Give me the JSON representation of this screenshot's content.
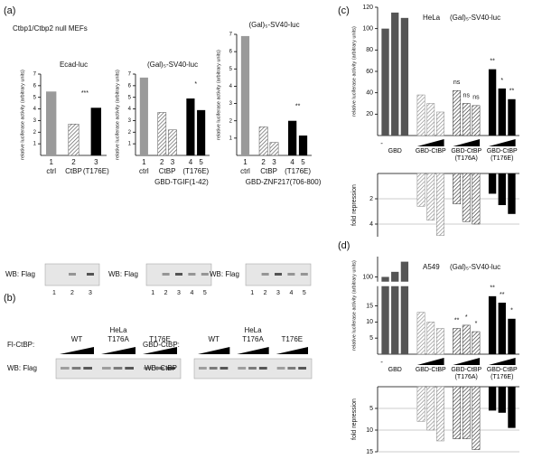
{
  "header": "Ctbp1/Ctbp2 null MEFs",
  "panel_labels": [
    "(a)",
    "(b)",
    "(c)",
    "(d)"
  ],
  "blots_a": [
    {
      "label": "WB: Flag",
      "lanes": [
        "1",
        "2",
        "3"
      ]
    },
    {
      "label": "WB: Flag",
      "lanes": [
        "1",
        "2",
        "3",
        "4",
        "5"
      ]
    },
    {
      "label": "WB: Flag",
      "lanes": [
        "1",
        "2",
        "3",
        "4",
        "5"
      ]
    }
  ],
  "panel_b": [
    {
      "cell": "HeLa",
      "construct": "Fl-CtBP:",
      "groups": [
        "WT",
        "T176A",
        "T176E"
      ],
      "wb": "WB: Flag"
    },
    {
      "cell": "HeLa",
      "construct": "GBD-CtBP:",
      "groups": [
        "WT",
        "T176A",
        "T176E"
      ],
      "wb": "WB: CtBP"
    }
  ],
  "chart_data": [
    {
      "type": "bar",
      "title": "Ecad-luc",
      "ylabel": "relative luciferase activity (arbitrary units)",
      "ylim": [
        0,
        7
      ],
      "yticks": [
        1,
        2,
        3,
        4,
        5,
        6,
        7
      ],
      "lane_labels": [
        "1",
        "2",
        "3"
      ],
      "series": [
        {
          "name": "ctrl",
          "color": "#9a9a9a",
          "values": [
            5.5
          ]
        },
        {
          "name": "CtBP",
          "color": "#555555",
          "pattern": "hatch",
          "values": [
            2.7
          ]
        },
        {
          "name": "(T176E)",
          "color": "#000000",
          "values": [
            4.1
          ]
        }
      ],
      "annotations": [
        "***"
      ]
    },
    {
      "type": "bar",
      "title": "(Gal)₅-SV40-luc",
      "ylabel": "relative luciferase activity (arbitrary units)",
      "ylim": [
        0,
        7
      ],
      "yticks": [
        1,
        2,
        3,
        4,
        5,
        6,
        7
      ],
      "lane_labels": [
        "1",
        "2",
        "3",
        "4",
        "5"
      ],
      "series": [
        {
          "name": "ctrl",
          "color": "#9a9a9a",
          "values": [
            6.7
          ]
        },
        {
          "name": "CtBP",
          "color": "#555555",
          "pattern": "hatch",
          "values": [
            3.7,
            2.2
          ]
        },
        {
          "name": "(T176E)",
          "color": "#000000",
          "values": [
            4.9,
            3.9
          ]
        }
      ],
      "xlabel": "GBD-TGIF(1-42)",
      "annotations": [
        "*"
      ]
    },
    {
      "type": "bar",
      "title": "(Gal)₅-SV40-luc",
      "ylabel": "relative luciferase activity (arbitrary units)",
      "ylim": [
        0,
        7
      ],
      "yticks": [
        1,
        2,
        3,
        4,
        5,
        6,
        7
      ],
      "lane_labels": [
        "1",
        "2",
        "3",
        "4",
        "5"
      ],
      "series": [
        {
          "name": "ctrl",
          "color": "#9a9a9a",
          "values": [
            6.9
          ]
        },
        {
          "name": "CtBP",
          "color": "#555555",
          "pattern": "hatch",
          "values": [
            1.65,
            0.75
          ]
        },
        {
          "name": "(T176E)",
          "color": "#000000",
          "values": [
            2.0,
            1.15
          ]
        }
      ],
      "xlabel": "GBD-ZNF217(706-800)",
      "annotations": [
        "**"
      ]
    },
    {
      "type": "bar",
      "cell_line": "HeLa",
      "title": "(Gal)₅-SV40-luc",
      "ylabel": "relative luciferase activity (arbitrary units)",
      "ylim": [
        0,
        120
      ],
      "yticks": [
        20,
        40,
        60,
        80,
        100,
        120
      ],
      "control_label": "-",
      "series": [
        {
          "name": "GBD",
          "color": "#555555",
          "values": [
            100,
            115,
            110
          ]
        },
        {
          "name": "GBD-CtBP",
          "color": "#888888",
          "pattern": "hatch",
          "values": [
            38,
            30,
            22
          ]
        },
        {
          "name": "GBD-CtBP (T176A)",
          "color": "#333333",
          "pattern": "hatch",
          "values": [
            42,
            30,
            28
          ]
        },
        {
          "name": "GBD-CtBP (T176E)",
          "color": "#000000",
          "values": [
            62,
            44,
            34
          ]
        }
      ],
      "annotations": [
        "ns",
        "ns",
        "ns",
        "**",
        "*",
        "**"
      ]
    },
    {
      "type": "bar",
      "ylabel": "fold repression",
      "ylim": [
        0,
        5
      ],
      "yticks": [
        2,
        4
      ],
      "y_inverted": true,
      "series": [
        {
          "color": "#888888",
          "pattern": "hatch",
          "values": [
            2.6,
            3.7,
            4.9
          ]
        },
        {
          "color": "#333333",
          "pattern": "hatch",
          "values": [
            2.4,
            3.8,
            4.0
          ]
        },
        {
          "color": "#000000",
          "values": [
            1.6,
            2.5,
            3.2
          ]
        }
      ]
    },
    {
      "type": "bar",
      "cell_line": "A549",
      "title": "(Gal)₅-SV40-luc",
      "ylabel": "relative luciferase activity (arbitrary units)",
      "ylim": [
        0,
        120
      ],
      "ybreak": [
        20,
        95
      ],
      "yticks": [
        5,
        10,
        15,
        100
      ],
      "control_label": "-",
      "series": [
        {
          "name": "GBD",
          "color": "#555555",
          "values": [
            100,
            105,
            115
          ]
        },
        {
          "name": "GBD-CtBP",
          "color": "#888888",
          "pattern": "hatch",
          "values": [
            13,
            10,
            8
          ]
        },
        {
          "name": "GBD-CtBP (T176A)",
          "color": "#333333",
          "pattern": "hatch",
          "values": [
            8,
            9,
            7
          ]
        },
        {
          "name": "GBD-CtBP (T176E)",
          "color": "#000000",
          "values": [
            18,
            16,
            11
          ]
        }
      ],
      "annotations": [
        "**",
        "*",
        "*",
        "**",
        "**",
        "*"
      ]
    },
    {
      "type": "bar",
      "ylabel": "fold repression",
      "ylim": [
        0,
        15
      ],
      "yticks": [
        5,
        10,
        15
      ],
      "y_inverted": true,
      "series": [
        {
          "color": "#888888",
          "pattern": "hatch",
          "values": [
            8,
            10,
            12.5
          ]
        },
        {
          "color": "#333333",
          "pattern": "hatch",
          "values": [
            12,
            12,
            14.5
          ]
        },
        {
          "color": "#000000",
          "values": [
            5.5,
            6,
            9.5
          ]
        }
      ]
    }
  ]
}
